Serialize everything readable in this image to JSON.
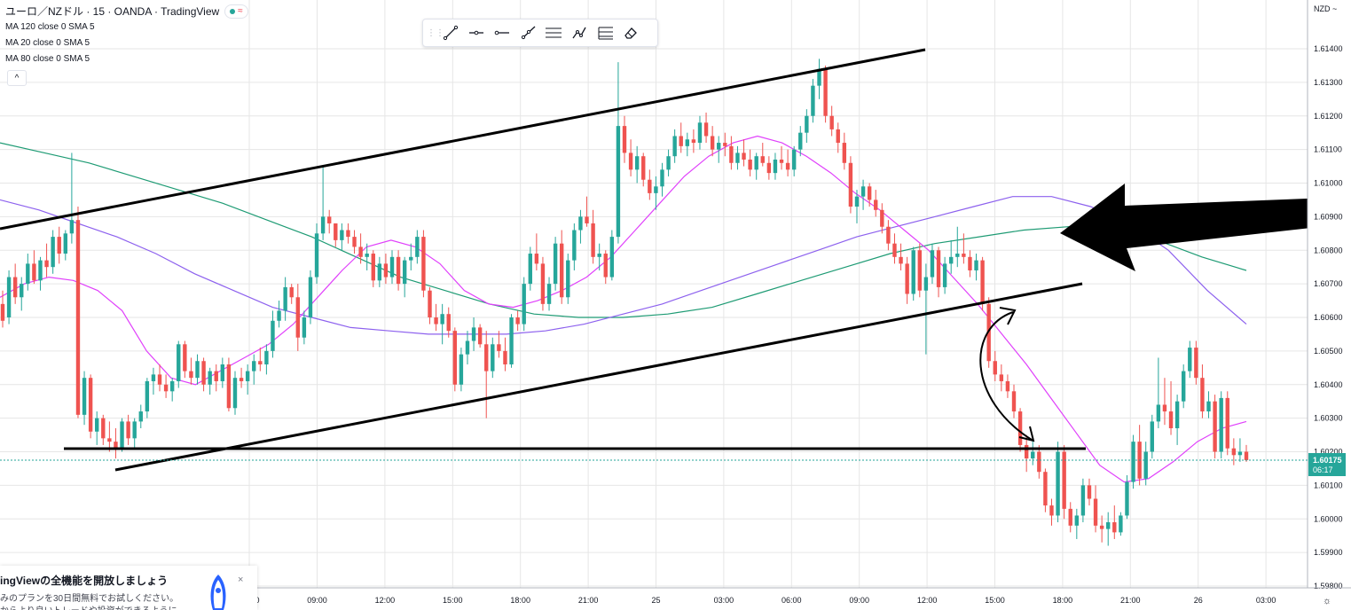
{
  "header": {
    "symbol_title": "ユーロ／NZドル · 15 · OANDA · TradingView",
    "status_wave": "≈",
    "indicators": [
      "MA 120 close 0 SMA 5",
      "MA 20 close 0 SMA 5",
      "MA 80 close 0 SMA 5"
    ],
    "collapse_glyph": "^"
  },
  "toolbar": {
    "grip": "⋮⋮",
    "tools": [
      "trend-line-tool",
      "horizontal-ray-tool",
      "horizontal-line-tool",
      "ray-tool",
      "parallel-channel-tool",
      "path-tool",
      "fib-tool",
      "eraser-tool"
    ]
  },
  "price_axis": {
    "currency": "NZD ~",
    "labels": [
      "1.61400",
      "1.61300",
      "1.61200",
      "1.61100",
      "1.61000",
      "1.60900",
      "1.60800",
      "1.60700",
      "1.60600",
      "1.60500",
      "1.60400",
      "1.60300",
      "1.60200",
      "1.60100",
      "1.60000",
      "1.59900",
      "1.59800"
    ],
    "current_price": "1.60175",
    "countdown": "06:17",
    "current_price_color": "#26a69a"
  },
  "time_axis": {
    "labels": [
      "09:00",
      "12:00",
      "15:00",
      "18:00",
      "21:00",
      "25",
      "03:00",
      "06:00",
      "09:00",
      "12:00",
      "15:00",
      "18:00",
      "21:00",
      "26",
      "03:00"
    ],
    "cut_label": "0"
  },
  "promo": {
    "heading": "ingViewの全機能を開放しましょう",
    "line1": "みのプランを30日間無料でお試しください。",
    "line2": "からより良いトレードや投資ができるように",
    "close": "×"
  },
  "colors": {
    "up": "#26a69a",
    "down": "#ef5350",
    "ma120": "#8d61ee",
    "ma20": "#e040fb",
    "ma80": "#1e9b74",
    "drawing": "#000000",
    "grid": "#e6e6e6"
  },
  "chart_data": {
    "type": "candlestick",
    "title": "ユーロ／NZドル · 15 · OANDA · TradingView",
    "timeframe": "15",
    "yrange": [
      1.598,
      1.6145
    ],
    "current_price": 1.60175,
    "candles_ohlc": [
      [
        1.6064,
        1.6068,
        1.6057,
        1.6059
      ],
      [
        1.606,
        1.6074,
        1.6058,
        1.6072
      ],
      [
        1.6072,
        1.6076,
        1.6064,
        1.6066
      ],
      [
        1.6066,
        1.6072,
        1.6062,
        1.607
      ],
      [
        1.607,
        1.6079,
        1.6068,
        1.6076
      ],
      [
        1.6076,
        1.608,
        1.607,
        1.6071
      ],
      [
        1.6071,
        1.6078,
        1.6068,
        1.6077
      ],
      [
        1.6077,
        1.6082,
        1.6072,
        1.6075
      ],
      [
        1.6075,
        1.6086,
        1.6073,
        1.6084
      ],
      [
        1.6084,
        1.6087,
        1.6076,
        1.6079
      ],
      [
        1.6079,
        1.6086,
        1.6077,
        1.6085
      ],
      [
        1.6085,
        1.6109,
        1.6082,
        1.6089
      ],
      [
        1.6089,
        1.6093,
        1.603,
        1.6031
      ],
      [
        1.6031,
        1.6044,
        1.6028,
        1.6042
      ],
      [
        1.6042,
        1.6043,
        1.6024,
        1.6026
      ],
      [
        1.6026,
        1.6032,
        1.6022,
        1.603
      ],
      [
        1.603,
        1.6031,
        1.6022,
        1.6024
      ],
      [
        1.6024,
        1.6029,
        1.602,
        1.6023
      ],
      [
        1.6023,
        1.6027,
        1.6018,
        1.6021
      ],
      [
        1.6021,
        1.603,
        1.602,
        1.6029
      ],
      [
        1.6029,
        1.6031,
        1.6022,
        1.6024
      ],
      [
        1.6024,
        1.603,
        1.6021,
        1.6029
      ],
      [
        1.6029,
        1.6034,
        1.6027,
        1.6032
      ],
      [
        1.6032,
        1.6042,
        1.603,
        1.6041
      ],
      [
        1.6041,
        1.6045,
        1.6037,
        1.6043
      ],
      [
        1.6043,
        1.6046,
        1.6038,
        1.604
      ],
      [
        1.604,
        1.6043,
        1.6036,
        1.6038
      ],
      [
        1.6038,
        1.6042,
        1.6035,
        1.6041
      ],
      [
        1.6041,
        1.6053,
        1.6039,
        1.6052
      ],
      [
        1.6052,
        1.6053,
        1.6042,
        1.6044
      ],
      [
        1.6044,
        1.6048,
        1.604,
        1.6042
      ],
      [
        1.6042,
        1.6049,
        1.604,
        1.6047
      ],
      [
        1.6047,
        1.6048,
        1.6038,
        1.604
      ],
      [
        1.604,
        1.6045,
        1.6037,
        1.6044
      ],
      [
        1.6044,
        1.6046,
        1.6038,
        1.6041
      ],
      [
        1.6041,
        1.6048,
        1.6039,
        1.6046
      ],
      [
        1.6046,
        1.6048,
        1.6032,
        1.6033
      ],
      [
        1.6033,
        1.6044,
        1.6031,
        1.6042
      ],
      [
        1.6042,
        1.6045,
        1.6039,
        1.6041
      ],
      [
        1.6041,
        1.6046,
        1.6037,
        1.6044
      ],
      [
        1.6044,
        1.6049,
        1.604,
        1.6047
      ],
      [
        1.6047,
        1.6051,
        1.6044,
        1.6046
      ],
      [
        1.6046,
        1.6052,
        1.6043,
        1.605
      ],
      [
        1.605,
        1.6062,
        1.6048,
        1.6059
      ],
      [
        1.6059,
        1.6065,
        1.6057,
        1.6062
      ],
      [
        1.6062,
        1.6072,
        1.6059,
        1.6069
      ],
      [
        1.6069,
        1.607,
        1.6064,
        1.6066
      ],
      [
        1.6066,
        1.607,
        1.605,
        1.6054
      ],
      [
        1.6054,
        1.6062,
        1.6052,
        1.606
      ],
      [
        1.606,
        1.6074,
        1.6058,
        1.6072
      ],
      [
        1.6072,
        1.6088,
        1.607,
        1.6085
      ],
      [
        1.6085,
        1.6105,
        1.6083,
        1.609
      ],
      [
        1.609,
        1.6092,
        1.6085,
        1.6088
      ],
      [
        1.6088,
        1.6088,
        1.6081,
        1.6083
      ],
      [
        1.6083,
        1.6088,
        1.608,
        1.6086
      ],
      [
        1.6086,
        1.6088,
        1.6082,
        1.6084
      ],
      [
        1.6084,
        1.6086,
        1.6079,
        1.6081
      ],
      [
        1.6081,
        1.6085,
        1.6076,
        1.6078
      ],
      [
        1.6078,
        1.6082,
        1.6074,
        1.6079
      ],
      [
        1.6079,
        1.608,
        1.6069,
        1.6071
      ],
      [
        1.6071,
        1.6078,
        1.6069,
        1.6076
      ],
      [
        1.6076,
        1.6079,
        1.607,
        1.6072
      ],
      [
        1.6072,
        1.608,
        1.607,
        1.6078
      ],
      [
        1.6078,
        1.608,
        1.6068,
        1.607
      ],
      [
        1.607,
        1.6078,
        1.6066,
        1.6077
      ],
      [
        1.6077,
        1.6082,
        1.6074,
        1.6078
      ],
      [
        1.6078,
        1.6086,
        1.6076,
        1.6084
      ],
      [
        1.6084,
        1.6086,
        1.6066,
        1.6068
      ],
      [
        1.6068,
        1.6069,
        1.6058,
        1.606
      ],
      [
        1.606,
        1.6064,
        1.6056,
        1.6058
      ],
      [
        1.6058,
        1.6064,
        1.6052,
        1.6061
      ],
      [
        1.6061,
        1.6063,
        1.6054,
        1.6056
      ],
      [
        1.6056,
        1.6057,
        1.6038,
        1.604
      ],
      [
        1.604,
        1.6051,
        1.6038,
        1.6049
      ],
      [
        1.6049,
        1.6056,
        1.6046,
        1.6053
      ],
      [
        1.6053,
        1.606,
        1.605,
        1.6057
      ],
      [
        1.6057,
        1.6058,
        1.6051,
        1.6052
      ],
      [
        1.6052,
        1.6056,
        1.603,
        1.6044
      ],
      [
        1.6044,
        1.6054,
        1.6042,
        1.6052
      ],
      [
        1.6052,
        1.6056,
        1.6048,
        1.605
      ],
      [
        1.605,
        1.6054,
        1.6044,
        1.6046
      ],
      [
        1.6046,
        1.6061,
        1.6045,
        1.606
      ],
      [
        1.606,
        1.6062,
        1.6056,
        1.6058
      ],
      [
        1.6058,
        1.6072,
        1.6056,
        1.607
      ],
      [
        1.607,
        1.6081,
        1.6068,
        1.6079
      ],
      [
        1.6079,
        1.6085,
        1.6074,
        1.6076
      ],
      [
        1.6076,
        1.6078,
        1.6062,
        1.6064
      ],
      [
        1.6064,
        1.6072,
        1.6062,
        1.607
      ],
      [
        1.607,
        1.6084,
        1.6068,
        1.6082
      ],
      [
        1.6082,
        1.6086,
        1.6064,
        1.6066
      ],
      [
        1.6066,
        1.6079,
        1.6064,
        1.6077
      ],
      [
        1.6077,
        1.6088,
        1.6074,
        1.6086
      ],
      [
        1.6086,
        1.6092,
        1.6082,
        1.609
      ],
      [
        1.609,
        1.6096,
        1.6087,
        1.6088
      ],
      [
        1.6088,
        1.6092,
        1.6076,
        1.6078
      ],
      [
        1.6078,
        1.6082,
        1.6074,
        1.6079
      ],
      [
        1.6079,
        1.608,
        1.607,
        1.6072
      ],
      [
        1.6072,
        1.6086,
        1.6071,
        1.6084
      ],
      [
        1.6084,
        1.6136,
        1.6082,
        1.6117
      ],
      [
        1.6117,
        1.612,
        1.6106,
        1.6109
      ],
      [
        1.6109,
        1.6113,
        1.6102,
        1.6104
      ],
      [
        1.6104,
        1.6111,
        1.61,
        1.6108
      ],
      [
        1.6108,
        1.6109,
        1.6099,
        1.6101
      ],
      [
        1.6101,
        1.6104,
        1.6095,
        1.6097
      ],
      [
        1.6097,
        1.6102,
        1.6092,
        1.6099
      ],
      [
        1.6099,
        1.6106,
        1.6096,
        1.6104
      ],
      [
        1.6104,
        1.611,
        1.6102,
        1.6108
      ],
      [
        1.6108,
        1.6116,
        1.6106,
        1.6114
      ],
      [
        1.6114,
        1.6118,
        1.6109,
        1.6111
      ],
      [
        1.6111,
        1.6115,
        1.6108,
        1.6113
      ],
      [
        1.6113,
        1.6116,
        1.6109,
        1.6112
      ],
      [
        1.6112,
        1.612,
        1.611,
        1.6118
      ],
      [
        1.6118,
        1.6121,
        1.6112,
        1.6114
      ],
      [
        1.6114,
        1.6117,
        1.6108,
        1.611
      ],
      [
        1.611,
        1.6114,
        1.6106,
        1.6112
      ],
      [
        1.6112,
        1.6115,
        1.6108,
        1.6111
      ],
      [
        1.6111,
        1.6114,
        1.6104,
        1.6106
      ],
      [
        1.6106,
        1.6111,
        1.6104,
        1.6109
      ],
      [
        1.6109,
        1.6113,
        1.6105,
        1.6107
      ],
      [
        1.6107,
        1.611,
        1.6102,
        1.6104
      ],
      [
        1.6104,
        1.6109,
        1.6101,
        1.6108
      ],
      [
        1.6108,
        1.6112,
        1.6105,
        1.6106
      ],
      [
        1.6106,
        1.6108,
        1.6101,
        1.6103
      ],
      [
        1.6103,
        1.6109,
        1.6101,
        1.6107
      ],
      [
        1.6107,
        1.6111,
        1.6104,
        1.6106
      ],
      [
        1.6106,
        1.611,
        1.6102,
        1.6104
      ],
      [
        1.6104,
        1.6111,
        1.6102,
        1.611
      ],
      [
        1.611,
        1.6117,
        1.6108,
        1.6115
      ],
      [
        1.6115,
        1.6122,
        1.6112,
        1.612
      ],
      [
        1.612,
        1.6131,
        1.6118,
        1.6129
      ],
      [
        1.6129,
        1.6137,
        1.6125,
        1.6134
      ],
      [
        1.6134,
        1.6135,
        1.6118,
        1.612
      ],
      [
        1.612,
        1.6123,
        1.6114,
        1.6116
      ],
      [
        1.6116,
        1.6118,
        1.6109,
        1.6112
      ],
      [
        1.6112,
        1.6115,
        1.6104,
        1.6106
      ],
      [
        1.6106,
        1.6108,
        1.6091,
        1.6093
      ],
      [
        1.6093,
        1.6098,
        1.6088,
        1.6096
      ],
      [
        1.6096,
        1.6101,
        1.6092,
        1.6099
      ],
      [
        1.6099,
        1.61,
        1.6093,
        1.6095
      ],
      [
        1.6095,
        1.6098,
        1.609,
        1.6092
      ],
      [
        1.6092,
        1.6094,
        1.6085,
        1.6087
      ],
      [
        1.6087,
        1.6089,
        1.608,
        1.6082
      ],
      [
        1.6082,
        1.6085,
        1.6076,
        1.6078
      ],
      [
        1.6078,
        1.6082,
        1.6074,
        1.6076
      ],
      [
        1.6076,
        1.6078,
        1.6064,
        1.6067
      ],
      [
        1.6067,
        1.6081,
        1.6065,
        1.608
      ],
      [
        1.608,
        1.6082,
        1.6066,
        1.6068
      ],
      [
        1.6068,
        1.6076,
        1.6049,
        1.6072
      ],
      [
        1.6072,
        1.6082,
        1.607,
        1.608
      ],
      [
        1.608,
        1.6081,
        1.6066,
        1.6069
      ],
      [
        1.6069,
        1.6078,
        1.6067,
        1.6076
      ],
      [
        1.6076,
        1.6083,
        1.6073,
        1.6078
      ],
      [
        1.6078,
        1.6087,
        1.6075,
        1.6079
      ],
      [
        1.6079,
        1.6085,
        1.6076,
        1.6078
      ],
      [
        1.6078,
        1.608,
        1.6072,
        1.6074
      ],
      [
        1.6074,
        1.6079,
        1.6071,
        1.6077
      ],
      [
        1.6077,
        1.6078,
        1.6062,
        1.6064
      ],
      [
        1.6064,
        1.6066,
        1.6045,
        1.6047
      ],
      [
        1.6047,
        1.605,
        1.6041,
        1.6043
      ],
      [
        1.6043,
        1.6046,
        1.6038,
        1.6041
      ],
      [
        1.6041,
        1.6043,
        1.6036,
        1.6038
      ],
      [
        1.6038,
        1.604,
        1.603,
        1.6032
      ],
      [
        1.6032,
        1.6033,
        1.602,
        1.6022
      ],
      [
        1.6022,
        1.6025,
        1.6014,
        1.6018
      ],
      [
        1.6018,
        1.6024,
        1.6016,
        1.602
      ],
      [
        1.602,
        1.6022,
        1.6012,
        1.6014
      ],
      [
        1.6014,
        1.6015,
        1.6002,
        1.6004
      ],
      [
        1.6004,
        1.6006,
        1.5998,
        1.6001
      ],
      [
        1.6001,
        1.6023,
        1.5999,
        1.602
      ],
      [
        1.602,
        1.6022,
        1.6,
        1.6003
      ],
      [
        1.6003,
        1.6005,
        1.5996,
        1.5998
      ],
      [
        1.5998,
        1.6003,
        1.5994,
        1.6001
      ],
      [
        1.6001,
        1.6012,
        1.5999,
        1.601
      ],
      [
        1.601,
        1.6012,
        1.6004,
        1.6006
      ],
      [
        1.6006,
        1.601,
        1.5996,
        1.5998
      ],
      [
        1.5998,
        1.6001,
        1.5993,
        1.5997
      ],
      [
        1.5997,
        1.6002,
        1.5992,
        1.5999
      ],
      [
        1.5999,
        1.6004,
        1.5994,
        1.5996
      ],
      [
        1.5996,
        1.6002,
        1.5995,
        1.6001
      ],
      [
        1.6001,
        1.6013,
        1.6,
        1.6011
      ],
      [
        1.6011,
        1.6025,
        1.6009,
        1.6023
      ],
      [
        1.6023,
        1.6028,
        1.601,
        1.6012
      ],
      [
        1.6012,
        1.6023,
        1.601,
        1.602
      ],
      [
        1.602,
        1.6031,
        1.6018,
        1.6029
      ],
      [
        1.6029,
        1.6048,
        1.6027,
        1.6034
      ],
      [
        1.6034,
        1.6042,
        1.6028,
        1.6032
      ],
      [
        1.6032,
        1.6041,
        1.6025,
        1.6027
      ],
      [
        1.6027,
        1.6037,
        1.6022,
        1.6035
      ],
      [
        1.6035,
        1.6046,
        1.6033,
        1.6044
      ],
      [
        1.6044,
        1.6053,
        1.6042,
        1.6051
      ],
      [
        1.6051,
        1.6053,
        1.604,
        1.6042
      ],
      [
        1.6042,
        1.6046,
        1.603,
        1.6032
      ],
      [
        1.6032,
        1.6038,
        1.603,
        1.6035
      ],
      [
        1.6035,
        1.6037,
        1.6018,
        1.602
      ],
      [
        1.602,
        1.6038,
        1.6018,
        1.6036
      ],
      [
        1.6036,
        1.6038,
        1.6019,
        1.6021
      ],
      [
        1.6021,
        1.6024,
        1.6016,
        1.6019
      ],
      [
        1.6019,
        1.6024,
        1.6017,
        1.602
      ],
      [
        1.602,
        1.6022,
        1.6017,
        1.60175
      ]
    ],
    "ma120": [
      1.6112,
      1.6109,
      1.6106,
      1.6102,
      1.6098,
      1.6094,
      1.6089,
      1.6084,
      1.6078,
      1.6072,
      1.6068,
      1.6064,
      1.6061,
      1.606,
      1.606,
      1.6061,
      1.6063,
      1.6067,
      1.6071,
      1.6075,
      1.6079,
      1.6082,
      1.6084,
      1.6086,
      1.6087,
      1.6087,
      1.6083,
      1.6078,
      1.6074
    ],
    "ma80": [
      1.6095,
      1.6092,
      1.6088,
      1.6084,
      1.6079,
      1.6073,
      1.6068,
      1.6063,
      1.606,
      1.6057,
      1.6056,
      1.6055,
      1.6055,
      1.6055,
      1.6056,
      1.6058,
      1.6061,
      1.6064,
      1.6068,
      1.6072,
      1.6076,
      1.608,
      1.6084,
      1.6087,
      1.609,
      1.6093,
      1.6096,
      1.6096,
      1.6093,
      1.6088,
      1.608,
      1.6068,
      1.6058
    ],
    "ma20": [
      1.6066,
      1.607,
      1.6072,
      1.6071,
      1.6068,
      1.6062,
      1.605,
      1.6042,
      1.604,
      1.6044,
      1.6048,
      1.6052,
      1.6058,
      1.6066,
      1.6074,
      1.6081,
      1.6083,
      1.6081,
      1.6076,
      1.6068,
      1.6064,
      1.6063,
      1.6065,
      1.6068,
      1.6072,
      1.6078,
      1.6086,
      1.6094,
      1.6102,
      1.6108,
      1.6112,
      1.6114,
      1.6112,
      1.6108,
      1.6103,
      1.6097,
      1.6092,
      1.6086,
      1.608,
      1.6072,
      1.6064,
      1.6055,
      1.6046,
      1.6036,
      1.6026,
      1.6016,
      1.6011,
      1.6012,
      1.6017,
      1.6023,
      1.6027,
      1.6029
    ]
  }
}
